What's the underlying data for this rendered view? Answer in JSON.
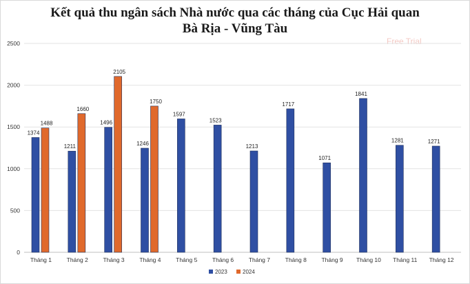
{
  "chart_data": {
    "type": "bar",
    "title_line1": "Kết quả thu ngân sách Nhà nước qua các tháng của Cục Hải quan",
    "title_line2": "Bà Rịa - Vũng Tàu",
    "watermark": "Free Trial",
    "categories": [
      "Tháng 1",
      "Tháng 2",
      "Tháng 3",
      "Tháng 4",
      "Tháng 5",
      "Tháng 6",
      "Tháng 7",
      "Tháng 8",
      "Tháng 9",
      "Tháng  10",
      "Tháng 11",
      "Tháng  12"
    ],
    "series": [
      {
        "name": "2023",
        "color": "#2f4fa3",
        "values": [
          1374,
          1211,
          1496,
          1246,
          1597,
          1523,
          1213,
          1717,
          1071,
          1841,
          1281,
          1271
        ]
      },
      {
        "name": "2024",
        "color": "#e0692c",
        "values": [
          1488,
          1660,
          2105,
          1750,
          null,
          null,
          null,
          null,
          null,
          null,
          null,
          null
        ]
      }
    ],
    "ylim": [
      0,
      2500
    ],
    "yticks": [
      0,
      500,
      1000,
      1500,
      2000,
      2500
    ],
    "grid": true,
    "legend_position": "bottom"
  }
}
